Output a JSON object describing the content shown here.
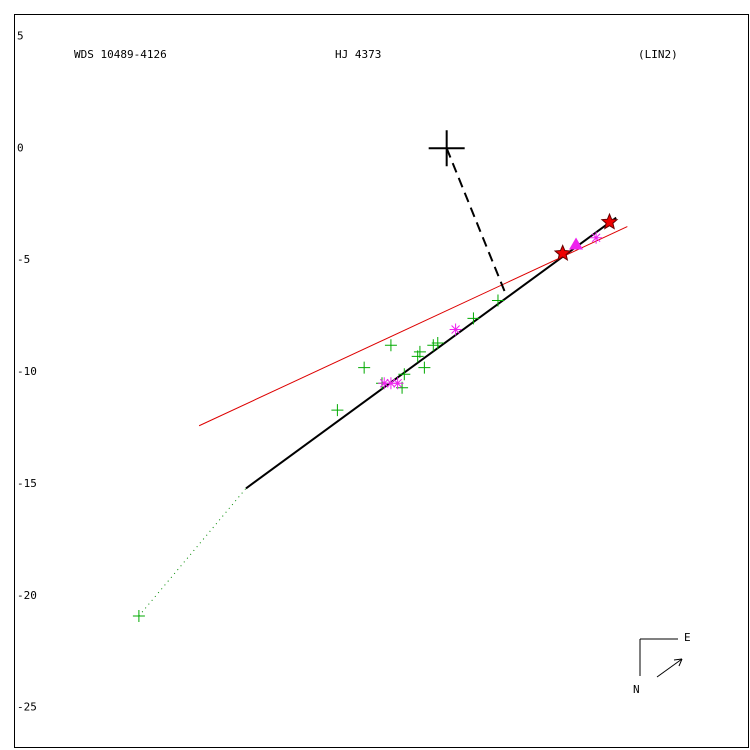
{
  "chart_data": {
    "type": "scatter",
    "annotations": [
      "WDS 10489-4126",
      "HJ 4373",
      "(LIN2)"
    ],
    "compass": {
      "east": "E",
      "north": "N"
    },
    "xlim": [
      -19.4,
      13.6
    ],
    "ylim": [
      -26.8,
      6
    ],
    "yticks": [
      5,
      0,
      -5,
      -10,
      -15,
      -20,
      -25
    ],
    "series": [
      {
        "marker": "line",
        "style": "solid",
        "color": "#000000",
        "x": [
          -9.0,
          7.6
        ],
        "values": [
          -15.2,
          -3.1
        ]
      },
      {
        "marker": "line",
        "style": "solid",
        "color": "#dd0000",
        "x": [
          -11.1,
          8.1
        ],
        "values": [
          -12.4,
          -3.5
        ]
      },
      {
        "marker": "line",
        "style": "dashed",
        "color": "#000000",
        "x": [
          0,
          2.6
        ],
        "values": [
          0,
          -6.4
        ]
      },
      {
        "marker": "line",
        "style": "dotted",
        "color": "#008800",
        "x": [
          -13.8,
          -9.0
        ],
        "values": [
          -20.9,
          -15.2
        ]
      },
      {
        "marker": "plus",
        "color": "#00aa00",
        "x": [
          -13.8,
          -4.9,
          -3.7,
          -2.5,
          -2.0,
          -1.9,
          -1.3,
          -1.2,
          -1.0,
          -0.6,
          -0.4,
          1.2,
          2.3,
          -2.9
        ],
        "values": [
          -20.9,
          -11.7,
          -9.8,
          -8.8,
          -10.7,
          -10.1,
          -9.3,
          -9.1,
          -9.8,
          -8.8,
          -8.7,
          -7.6,
          -6.8,
          -10.5
        ]
      },
      {
        "marker": "asterisk",
        "color": "#ee22ee",
        "x": [
          0.4,
          -2.8,
          -2.2,
          -2.5,
          6.7
        ],
        "values": [
          -8.1,
          -10.5,
          -10.5,
          -10.5,
          -4.0
        ]
      },
      {
        "marker": "triangle",
        "color": "#ee22ee",
        "x": [
          5.8
        ],
        "values": [
          -4.3
        ]
      },
      {
        "marker": "star",
        "color": "#ee0000",
        "x": [
          5.2,
          7.3
        ],
        "values": [
          -4.7,
          -3.3
        ]
      },
      {
        "marker": "cross",
        "color": "#000000",
        "x": [
          0
        ],
        "values": [
          0
        ]
      }
    ]
  }
}
